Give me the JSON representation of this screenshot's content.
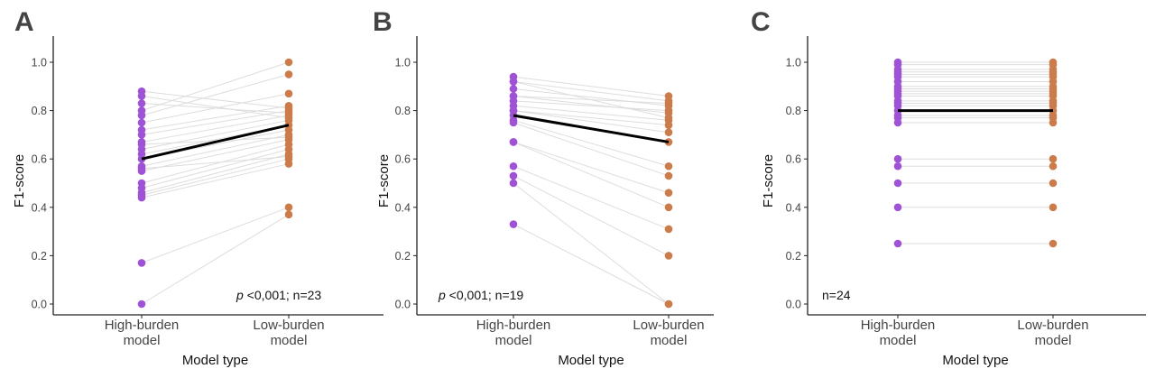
{
  "chart_data": [
    {
      "panel_label": "A",
      "type": "paired-dot-line",
      "title": "",
      "xlabel": "Model type",
      "ylabel": "F1-score",
      "categories": [
        "High-burden\nmodel",
        "Low-burden\nmodel"
      ],
      "ylim": [
        0,
        1.05
      ],
      "yticks": [
        "0.0",
        "0.2",
        "0.4",
        "0.6",
        "0.8",
        "1.0"
      ],
      "ytick_values": [
        0,
        0.2,
        0.4,
        0.6,
        0.8,
        1.0
      ],
      "annotation": {
        "p": "p",
        "rest": " <0,001; n=23",
        "position": "bottom-right"
      },
      "mean_line": [
        0.6,
        0.74
      ],
      "pairs": [
        [
          0.0,
          0.37
        ],
        [
          0.17,
          0.4
        ],
        [
          0.44,
          0.58
        ],
        [
          0.45,
          0.6
        ],
        [
          0.46,
          0.62
        ],
        [
          0.48,
          0.64
        ],
        [
          0.5,
          0.66
        ],
        [
          0.55,
          0.68
        ],
        [
          0.57,
          0.7
        ],
        [
          0.6,
          0.72
        ],
        [
          0.62,
          0.74
        ],
        [
          0.64,
          0.76
        ],
        [
          0.67,
          0.78
        ],
        [
          0.7,
          0.8
        ],
        [
          0.72,
          0.82
        ],
        [
          0.75,
          0.87
        ],
        [
          0.78,
          0.95
        ],
        [
          0.8,
          1.0
        ],
        [
          0.83,
          0.79
        ],
        [
          0.86,
          0.77
        ],
        [
          0.88,
          0.81
        ],
        [
          0.56,
          0.61
        ],
        [
          0.66,
          0.69
        ]
      ]
    },
    {
      "panel_label": "B",
      "type": "paired-dot-line",
      "title": "",
      "xlabel": "Model type",
      "ylabel": "F1-score",
      "categories": [
        "High-burden\nmodel",
        "Low-burden\nmodel"
      ],
      "ylim": [
        0,
        1.05
      ],
      "yticks": [
        "0.0",
        "0.2",
        "0.4",
        "0.6",
        "0.8",
        "1.0"
      ],
      "ytick_values": [
        0,
        0.2,
        0.4,
        0.6,
        0.8,
        1.0
      ],
      "annotation": {
        "p": "p",
        "rest": " <0,001; n=19",
        "position": "bottom-left"
      },
      "mean_line": [
        0.78,
        0.67
      ],
      "pairs": [
        [
          0.33,
          0.0
        ],
        [
          0.5,
          0.0
        ],
        [
          0.53,
          0.2
        ],
        [
          0.57,
          0.31
        ],
        [
          0.67,
          0.4
        ],
        [
          0.67,
          0.46
        ],
        [
          0.75,
          0.53
        ],
        [
          0.76,
          0.57
        ],
        [
          0.78,
          0.67
        ],
        [
          0.8,
          0.71
        ],
        [
          0.82,
          0.76
        ],
        [
          0.86,
          0.79
        ],
        [
          0.89,
          0.82
        ],
        [
          0.92,
          0.84
        ],
        [
          0.94,
          0.86
        ],
        [
          0.92,
          0.77
        ],
        [
          0.84,
          0.8
        ],
        [
          0.8,
          0.74
        ],
        [
          0.86,
          0.83
        ]
      ]
    },
    {
      "panel_label": "C",
      "type": "paired-dot-line",
      "title": "",
      "xlabel": "Model type",
      "ylabel": "F1-score",
      "categories": [
        "High-burden\nmodel",
        "Low-burden\nmodel"
      ],
      "ylim": [
        0,
        1.05
      ],
      "yticks": [
        "0.0",
        "0.2",
        "0.4",
        "0.6",
        "0.8",
        "1.0"
      ],
      "ytick_values": [
        0,
        0.2,
        0.4,
        0.6,
        0.8,
        1.0
      ],
      "annotation": {
        "p": "",
        "rest": "n=24",
        "position": "bottom-left"
      },
      "mean_line": [
        0.8,
        0.8
      ],
      "pairs": [
        [
          0.25,
          0.25
        ],
        [
          0.4,
          0.4
        ],
        [
          0.5,
          0.5
        ],
        [
          0.57,
          0.57
        ],
        [
          0.6,
          0.6
        ],
        [
          0.75,
          0.75
        ],
        [
          0.77,
          0.77
        ],
        [
          0.78,
          0.78
        ],
        [
          0.8,
          0.8
        ],
        [
          0.82,
          0.82
        ],
        [
          0.83,
          0.83
        ],
        [
          0.84,
          0.84
        ],
        [
          0.86,
          0.86
        ],
        [
          0.87,
          0.87
        ],
        [
          0.88,
          0.88
        ],
        [
          0.89,
          0.89
        ],
        [
          0.9,
          0.9
        ],
        [
          0.92,
          0.92
        ],
        [
          0.94,
          0.94
        ],
        [
          0.95,
          0.95
        ],
        [
          0.96,
          0.96
        ],
        [
          0.97,
          0.97
        ],
        [
          0.99,
          0.99
        ],
        [
          1.0,
          1.0
        ]
      ]
    }
  ],
  "colors": {
    "high_burden_dot": "#a052d6",
    "low_burden_dot": "#cc7b4a",
    "pair_line": "#dddddd",
    "mean_line": "#000000",
    "axis": "#222222",
    "panel_label": "#444444",
    "tick_text": "#444444"
  }
}
